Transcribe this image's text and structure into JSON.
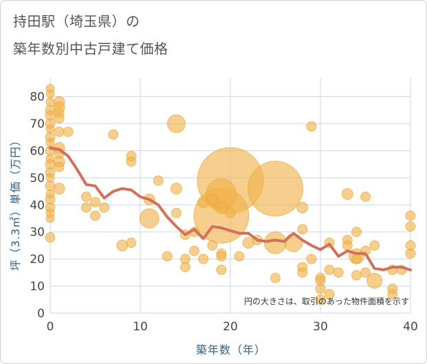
{
  "title_line1": "持田駅（埼玉県）の",
  "title_line2": "築年数別中古戸建て価格",
  "chart_data": {
    "type": "scatter",
    "title": "持田駅（埼玉県）の築年数別中古戸建て価格",
    "xlabel": "築年数（年）",
    "ylabel": "坪（3.3㎡）単価（万円）",
    "xlim": [
      0,
      40
    ],
    "ylim": [
      0,
      87
    ],
    "xticks": [
      0,
      10,
      20,
      30,
      40
    ],
    "yticks": [
      0,
      10,
      20,
      30,
      40,
      50,
      60,
      70,
      80
    ],
    "grid": true,
    "annotation": "円の大きさは、取引のあった物件面積を示す",
    "colors": {
      "bubble": "#f0b24a",
      "bubble_stroke": "#e9a636",
      "trend": "#d2705a",
      "grid": "#c9d7e8",
      "axis_text": "#444444"
    },
    "bubbles": [
      {
        "x": 0,
        "y": 83,
        "s": 6
      },
      {
        "x": 0,
        "y": 81,
        "s": 6
      },
      {
        "x": 0,
        "y": 78,
        "s": 6
      },
      {
        "x": 0,
        "y": 75,
        "s": 7
      },
      {
        "x": 0,
        "y": 73,
        "s": 7
      },
      {
        "x": 0,
        "y": 70,
        "s": 7
      },
      {
        "x": 0,
        "y": 68,
        "s": 6
      },
      {
        "x": 0,
        "y": 65,
        "s": 7
      },
      {
        "x": 0,
        "y": 63,
        "s": 6
      },
      {
        "x": 0,
        "y": 60,
        "s": 7
      },
      {
        "x": 0,
        "y": 57,
        "s": 6
      },
      {
        "x": 0,
        "y": 55,
        "s": 7
      },
      {
        "x": 0,
        "y": 52,
        "s": 7
      },
      {
        "x": 0,
        "y": 50,
        "s": 6
      },
      {
        "x": 0,
        "y": 47,
        "s": 7
      },
      {
        "x": 0,
        "y": 44,
        "s": 6
      },
      {
        "x": 0,
        "y": 42,
        "s": 7
      },
      {
        "x": 0,
        "y": 39,
        "s": 7
      },
      {
        "x": 0,
        "y": 37,
        "s": 6
      },
      {
        "x": 0,
        "y": 35,
        "s": 6
      },
      {
        "x": 0,
        "y": 28,
        "s": 7
      },
      {
        "x": 1,
        "y": 78,
        "s": 8
      },
      {
        "x": 1,
        "y": 76,
        "s": 8
      },
      {
        "x": 1,
        "y": 74,
        "s": 7
      },
      {
        "x": 1,
        "y": 72,
        "s": 7
      },
      {
        "x": 1,
        "y": 67,
        "s": 7
      },
      {
        "x": 1,
        "y": 61,
        "s": 8
      },
      {
        "x": 1,
        "y": 59,
        "s": 7
      },
      {
        "x": 1,
        "y": 56,
        "s": 8
      },
      {
        "x": 1,
        "y": 54,
        "s": 7
      },
      {
        "x": 1,
        "y": 46,
        "s": 8
      },
      {
        "x": 2,
        "y": 67,
        "s": 7
      },
      {
        "x": 4,
        "y": 43,
        "s": 7
      },
      {
        "x": 4,
        "y": 39,
        "s": 7
      },
      {
        "x": 5,
        "y": 41,
        "s": 7
      },
      {
        "x": 5,
        "y": 36,
        "s": 7
      },
      {
        "x": 6,
        "y": 39,
        "s": 7
      },
      {
        "x": 7,
        "y": 66,
        "s": 7
      },
      {
        "x": 8,
        "y": 25,
        "s": 8
      },
      {
        "x": 9,
        "y": 58,
        "s": 7
      },
      {
        "x": 9,
        "y": 56,
        "s": 7
      },
      {
        "x": 9,
        "y": 26,
        "s": 7
      },
      {
        "x": 11,
        "y": 42,
        "s": 8
      },
      {
        "x": 11,
        "y": 35,
        "s": 14
      },
      {
        "x": 12,
        "y": 49,
        "s": 7
      },
      {
        "x": 13,
        "y": 21,
        "s": 7
      },
      {
        "x": 14,
        "y": 70,
        "s": 13
      },
      {
        "x": 14,
        "y": 46,
        "s": 8
      },
      {
        "x": 14,
        "y": 37,
        "s": 7
      },
      {
        "x": 15,
        "y": 29,
        "s": 7
      },
      {
        "x": 15,
        "y": 20,
        "s": 7
      },
      {
        "x": 15,
        "y": 17,
        "s": 7
      },
      {
        "x": 16,
        "y": 30,
        "s": 7
      },
      {
        "x": 16,
        "y": 23,
        "s": 7
      },
      {
        "x": 17,
        "y": 41,
        "s": 8
      },
      {
        "x": 17,
        "y": 20,
        "s": 7
      },
      {
        "x": 18,
        "y": 42,
        "s": 8
      },
      {
        "x": 18,
        "y": 25,
        "s": 7
      },
      {
        "x": 19,
        "y": 44,
        "s": 22
      },
      {
        "x": 19,
        "y": 39,
        "s": 9
      },
      {
        "x": 19,
        "y": 36,
        "s": 40
      },
      {
        "x": 19,
        "y": 22,
        "s": 7
      },
      {
        "x": 19,
        "y": 21,
        "s": 7
      },
      {
        "x": 19,
        "y": 16,
        "s": 7
      },
      {
        "x": 20,
        "y": 49,
        "s": 48
      },
      {
        "x": 20,
        "y": 37,
        "s": 7
      },
      {
        "x": 21,
        "y": 21,
        "s": 7
      },
      {
        "x": 22,
        "y": 26,
        "s": 8
      },
      {
        "x": 23,
        "y": 27,
        "s": 7
      },
      {
        "x": 25,
        "y": 46,
        "s": 40
      },
      {
        "x": 25,
        "y": 26,
        "s": 16
      },
      {
        "x": 25,
        "y": 13,
        "s": 7
      },
      {
        "x": 27,
        "y": 26,
        "s": 13
      },
      {
        "x": 28,
        "y": 39,
        "s": 8
      },
      {
        "x": 28,
        "y": 31,
        "s": 7
      },
      {
        "x": 28,
        "y": 17,
        "s": 7
      },
      {
        "x": 28,
        "y": 15,
        "s": 7
      },
      {
        "x": 29,
        "y": 69,
        "s": 7
      },
      {
        "x": 29,
        "y": 20,
        "s": 7
      },
      {
        "x": 30,
        "y": 13,
        "s": 7
      },
      {
        "x": 30,
        "y": 12,
        "s": 7
      },
      {
        "x": 30,
        "y": 9,
        "s": 7
      },
      {
        "x": 30,
        "y": 5,
        "s": 7
      },
      {
        "x": 31,
        "y": 26,
        "s": 7
      },
      {
        "x": 31,
        "y": 16,
        "s": 7
      },
      {
        "x": 31,
        "y": 7,
        "s": 7
      },
      {
        "x": 32,
        "y": 15,
        "s": 7
      },
      {
        "x": 33,
        "y": 44,
        "s": 8
      },
      {
        "x": 33,
        "y": 27,
        "s": 7
      },
      {
        "x": 33,
        "y": 25,
        "s": 7
      },
      {
        "x": 34,
        "y": 30,
        "s": 7
      },
      {
        "x": 34,
        "y": 21,
        "s": 11
      },
      {
        "x": 34,
        "y": 20,
        "s": 7
      },
      {
        "x": 34,
        "y": 14,
        "s": 7
      },
      {
        "x": 35,
        "y": 43,
        "s": 7
      },
      {
        "x": 35,
        "y": 23,
        "s": 7
      },
      {
        "x": 35,
        "y": 15,
        "s": 7
      },
      {
        "x": 36,
        "y": 25,
        "s": 7
      },
      {
        "x": 36,
        "y": 12,
        "s": 11
      },
      {
        "x": 38,
        "y": 16,
        "s": 7
      },
      {
        "x": 38,
        "y": 9,
        "s": 7
      },
      {
        "x": 38,
        "y": 7,
        "s": 7
      },
      {
        "x": 39,
        "y": 16,
        "s": 7
      },
      {
        "x": 40,
        "y": 36,
        "s": 7
      },
      {
        "x": 40,
        "y": 32,
        "s": 7
      },
      {
        "x": 40,
        "y": 25,
        "s": 7
      },
      {
        "x": 40,
        "y": 22,
        "s": 7
      }
    ],
    "trend": {
      "x": [
        0,
        1,
        2,
        3,
        4,
        5,
        6,
        7,
        8,
        9,
        10,
        11,
        12,
        13,
        14,
        15,
        16,
        17,
        18,
        19,
        20,
        21,
        22,
        23,
        24,
        25,
        26,
        27,
        28,
        29,
        30,
        31,
        32,
        33,
        34,
        35,
        36,
        37,
        38,
        39,
        40
      ],
      "y": [
        61,
        60.5,
        58,
        53,
        47.5,
        47,
        42.5,
        45,
        46,
        45.5,
        43,
        42,
        40,
        35.5,
        32,
        29,
        31,
        27.5,
        32,
        31.5,
        30.5,
        29.5,
        29.5,
        27,
        26.5,
        27,
        26.5,
        29.5,
        27,
        25,
        23.5,
        25.5,
        21,
        23,
        22,
        22,
        16.5,
        16,
        17,
        17,
        16
      ]
    }
  }
}
